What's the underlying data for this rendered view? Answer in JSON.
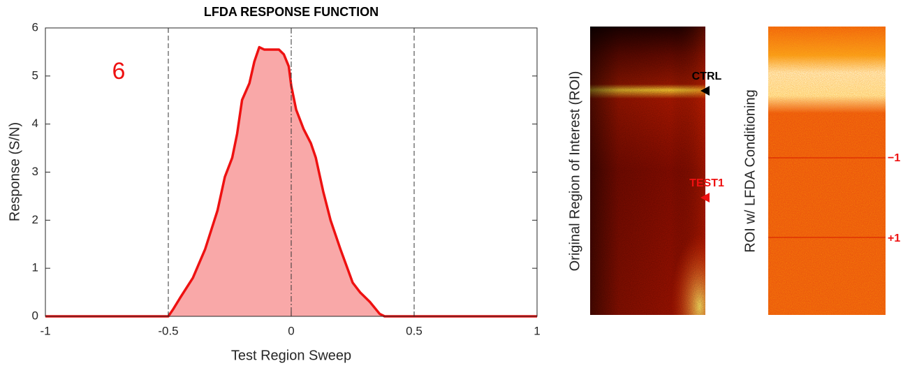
{
  "chart_data": {
    "type": "area",
    "title": "LFDA RESPONSE FUNCTION",
    "xlabel": "Test Region Sweep",
    "ylabel": "Response (S/N)",
    "annotation": "6",
    "x": [
      -1,
      -0.5,
      -0.48,
      -0.45,
      -0.4,
      -0.35,
      -0.3,
      -0.27,
      -0.24,
      -0.22,
      -0.2,
      -0.17,
      -0.15,
      -0.13,
      -0.11,
      -0.08,
      -0.05,
      -0.03,
      -0.01,
      0,
      0.02,
      0.05,
      0.08,
      0.1,
      0.13,
      0.16,
      0.2,
      0.25,
      0.28,
      0.32,
      0.36,
      0.38,
      1
    ],
    "values": [
      0,
      0,
      0.15,
      0.4,
      0.8,
      1.4,
      2.2,
      2.9,
      3.3,
      3.8,
      4.5,
      4.85,
      5.3,
      5.6,
      5.55,
      5.55,
      5.55,
      5.45,
      5.2,
      4.8,
      4.3,
      3.9,
      3.6,
      3.3,
      2.6,
      2.0,
      1.4,
      0.7,
      0.5,
      0.3,
      0.05,
      0,
      0
    ],
    "color": "#ee1111",
    "fill_color": "#f9a8a8",
    "reference_lines": [
      {
        "x": -0.5,
        "style": "dashed"
      },
      {
        "x": 0,
        "style": "dashdot"
      },
      {
        "x": 0.5,
        "style": "dashed"
      }
    ],
    "xlim": [
      -1,
      1
    ],
    "xticks": [
      -1,
      -0.5,
      0,
      0.5,
      1
    ],
    "ylim": [
      0,
      6
    ],
    "yticks": [
      0,
      1,
      2,
      3,
      4,
      5,
      6
    ],
    "grid": false
  },
  "images": [
    {
      "ylabel": "Original Region of Interest (ROI)",
      "markers": [
        {
          "label": "CTRL",
          "color": "#000000"
        },
        {
          "label": "TEST1",
          "color": "#ee1111"
        }
      ]
    },
    {
      "ylabel": "ROI w/ LFDA Conditioning",
      "markers": [
        {
          "label": "−1",
          "color": "#ee1111"
        },
        {
          "label": "+1",
          "color": "#ee1111"
        }
      ]
    }
  ]
}
